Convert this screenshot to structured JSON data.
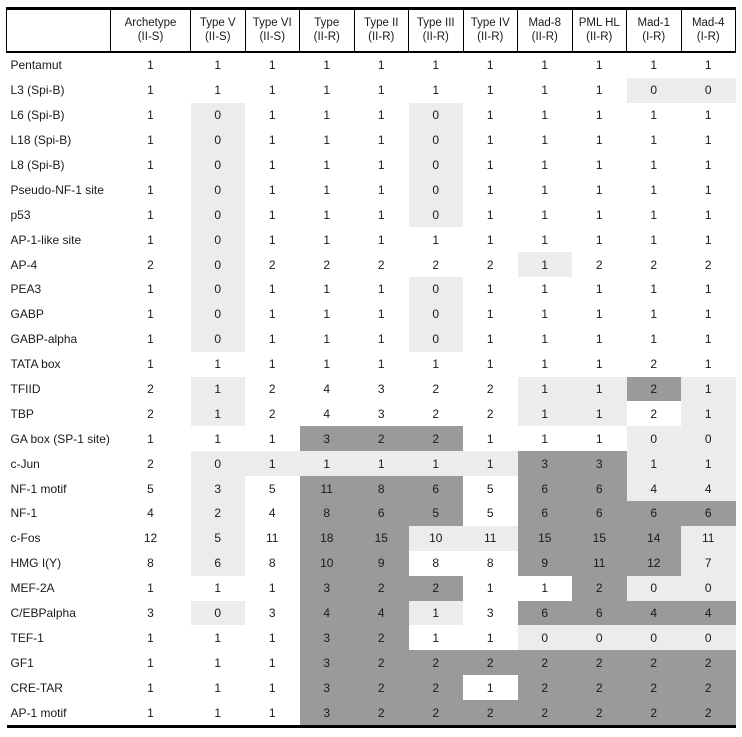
{
  "table": {
    "corner_label": "",
    "colors": {
      "highlight_light": "#ececec",
      "highlight_dark": "#9a9a9a",
      "text": "#1a1a1a",
      "border": "#000000",
      "background": "#ffffff"
    },
    "columns": [
      {
        "label": "Archetype",
        "sub": "(II-S)"
      },
      {
        "label": "Type V",
        "sub": "(II-S)"
      },
      {
        "label": "Type VI",
        "sub": "(II-S)"
      },
      {
        "label": "Type",
        "sub": "(II-R)"
      },
      {
        "label": "Type II",
        "sub": "(II-R)"
      },
      {
        "label": "Type III",
        "sub": "(II-R)"
      },
      {
        "label": "Type IV",
        "sub": "(II-R)"
      },
      {
        "label": "Mad-8",
        "sub": "(II-R)"
      },
      {
        "label": "PML HL",
        "sub": "(II-R)"
      },
      {
        "label": "Mad-1",
        "sub": "(I-R)"
      },
      {
        "label": "Mad-4",
        "sub": "(I-R)"
      }
    ],
    "shade_legend": {
      "w": "white",
      "l": "light-gray",
      "d": "dark-gray"
    },
    "rows": [
      {
        "label": "Pentamut",
        "values": [
          1,
          1,
          1,
          1,
          1,
          1,
          1,
          1,
          1,
          1,
          1
        ],
        "shades": [
          "w",
          "w",
          "w",
          "w",
          "w",
          "w",
          "w",
          "w",
          "w",
          "w",
          "w"
        ]
      },
      {
        "label": "L3 (Spi-B)",
        "values": [
          1,
          1,
          1,
          1,
          1,
          1,
          1,
          1,
          1,
          0,
          0
        ],
        "shades": [
          "w",
          "w",
          "w",
          "w",
          "w",
          "w",
          "w",
          "w",
          "w",
          "l",
          "l"
        ]
      },
      {
        "label": "L6 (Spi-B)",
        "values": [
          1,
          0,
          1,
          1,
          1,
          0,
          1,
          1,
          1,
          1,
          1
        ],
        "shades": [
          "w",
          "l",
          "w",
          "w",
          "w",
          "l",
          "w",
          "w",
          "w",
          "w",
          "w"
        ]
      },
      {
        "label": "L18 (Spi-B)",
        "values": [
          1,
          0,
          1,
          1,
          1,
          0,
          1,
          1,
          1,
          1,
          1
        ],
        "shades": [
          "w",
          "l",
          "w",
          "w",
          "w",
          "l",
          "w",
          "w",
          "w",
          "w",
          "w"
        ]
      },
      {
        "label": "L8 (Spi-B)",
        "values": [
          1,
          0,
          1,
          1,
          1,
          0,
          1,
          1,
          1,
          1,
          1
        ],
        "shades": [
          "w",
          "l",
          "w",
          "w",
          "w",
          "l",
          "w",
          "w",
          "w",
          "w",
          "w"
        ]
      },
      {
        "label": "Pseudo-NF-1 site",
        "values": [
          1,
          0,
          1,
          1,
          1,
          0,
          1,
          1,
          1,
          1,
          1
        ],
        "shades": [
          "w",
          "l",
          "w",
          "w",
          "w",
          "l",
          "w",
          "w",
          "w",
          "w",
          "w"
        ]
      },
      {
        "label": "p53",
        "values": [
          1,
          0,
          1,
          1,
          1,
          0,
          1,
          1,
          1,
          1,
          1
        ],
        "shades": [
          "w",
          "l",
          "w",
          "w",
          "w",
          "l",
          "w",
          "w",
          "w",
          "w",
          "w"
        ]
      },
      {
        "label": "AP-1-like site",
        "values": [
          1,
          0,
          1,
          1,
          1,
          1,
          1,
          1,
          1,
          1,
          1
        ],
        "shades": [
          "w",
          "l",
          "w",
          "w",
          "w",
          "w",
          "w",
          "w",
          "w",
          "w",
          "w"
        ]
      },
      {
        "label": "AP-4",
        "values": [
          2,
          0,
          2,
          2,
          2,
          2,
          2,
          1,
          2,
          2,
          2
        ],
        "shades": [
          "w",
          "l",
          "w",
          "w",
          "w",
          "w",
          "w",
          "l",
          "w",
          "w",
          "w"
        ]
      },
      {
        "label": "PEA3",
        "values": [
          1,
          0,
          1,
          1,
          1,
          0,
          1,
          1,
          1,
          1,
          1
        ],
        "shades": [
          "w",
          "l",
          "w",
          "w",
          "w",
          "l",
          "w",
          "w",
          "w",
          "w",
          "w"
        ]
      },
      {
        "label": "GABP",
        "values": [
          1,
          0,
          1,
          1,
          1,
          0,
          1,
          1,
          1,
          1,
          1
        ],
        "shades": [
          "w",
          "l",
          "w",
          "w",
          "w",
          "l",
          "w",
          "w",
          "w",
          "w",
          "w"
        ]
      },
      {
        "label": "GABP-alpha",
        "values": [
          1,
          0,
          1,
          1,
          1,
          0,
          1,
          1,
          1,
          1,
          1
        ],
        "shades": [
          "w",
          "l",
          "w",
          "w",
          "w",
          "l",
          "w",
          "w",
          "w",
          "w",
          "w"
        ]
      },
      {
        "label": "TATA box",
        "values": [
          1,
          1,
          1,
          1,
          1,
          1,
          1,
          1,
          1,
          2,
          1
        ],
        "shades": [
          "w",
          "w",
          "w",
          "w",
          "w",
          "w",
          "w",
          "w",
          "w",
          "w",
          "w"
        ]
      },
      {
        "label": "TFIID",
        "values": [
          2,
          1,
          2,
          4,
          3,
          2,
          2,
          1,
          1,
          2,
          1
        ],
        "shades": [
          "w",
          "l",
          "w",
          "w",
          "w",
          "w",
          "w",
          "l",
          "l",
          "d",
          "l"
        ]
      },
      {
        "label": "TBP",
        "values": [
          2,
          1,
          2,
          4,
          3,
          2,
          2,
          1,
          1,
          2,
          1
        ],
        "shades": [
          "w",
          "l",
          "w",
          "w",
          "w",
          "w",
          "w",
          "l",
          "l",
          "w",
          "l"
        ]
      },
      {
        "label": "GA box (SP-1 site)",
        "values": [
          1,
          1,
          1,
          3,
          2,
          2,
          1,
          1,
          1,
          0,
          0
        ],
        "shades": [
          "w",
          "w",
          "w",
          "d",
          "d",
          "d",
          "w",
          "w",
          "w",
          "l",
          "l"
        ]
      },
      {
        "label": "c-Jun",
        "values": [
          2,
          0,
          1,
          1,
          1,
          1,
          1,
          3,
          3,
          1,
          1
        ],
        "shades": [
          "w",
          "l",
          "l",
          "l",
          "l",
          "l",
          "l",
          "d",
          "d",
          "l",
          "l"
        ]
      },
      {
        "label": "NF-1 motif",
        "values": [
          5,
          3,
          5,
          11,
          8,
          6,
          5,
          6,
          6,
          4,
          4
        ],
        "shades": [
          "w",
          "l",
          "w",
          "d",
          "d",
          "d",
          "w",
          "d",
          "d",
          "l",
          "l"
        ]
      },
      {
        "label": "NF-1",
        "values": [
          4,
          2,
          4,
          8,
          6,
          5,
          5,
          6,
          6,
          6,
          6
        ],
        "shades": [
          "w",
          "l",
          "w",
          "d",
          "d",
          "d",
          "w",
          "d",
          "d",
          "d",
          "d"
        ]
      },
      {
        "label": "c-Fos",
        "values": [
          12,
          5,
          11,
          18,
          15,
          10,
          11,
          15,
          15,
          14,
          11
        ],
        "shades": [
          "w",
          "l",
          "w",
          "d",
          "d",
          "l",
          "l",
          "d",
          "d",
          "d",
          "l"
        ]
      },
      {
        "label": "HMG I(Y)",
        "values": [
          8,
          6,
          8,
          10,
          9,
          8,
          8,
          9,
          11,
          12,
          7
        ],
        "shades": [
          "w",
          "l",
          "w",
          "d",
          "d",
          "w",
          "w",
          "d",
          "d",
          "d",
          "l"
        ]
      },
      {
        "label": "MEF-2A",
        "values": [
          1,
          1,
          1,
          3,
          2,
          2,
          1,
          1,
          2,
          0,
          0
        ],
        "shades": [
          "w",
          "w",
          "w",
          "d",
          "d",
          "d",
          "w",
          "w",
          "d",
          "l",
          "l"
        ]
      },
      {
        "label": "C/EBPalpha",
        "values": [
          3,
          0,
          3,
          4,
          4,
          1,
          3,
          6,
          6,
          4,
          4
        ],
        "shades": [
          "w",
          "l",
          "w",
          "d",
          "d",
          "l",
          "w",
          "d",
          "d",
          "d",
          "d"
        ]
      },
      {
        "label": "TEF-1",
        "values": [
          1,
          1,
          1,
          3,
          2,
          1,
          1,
          0,
          0,
          0,
          0
        ],
        "shades": [
          "w",
          "w",
          "w",
          "d",
          "d",
          "w",
          "w",
          "l",
          "l",
          "l",
          "l"
        ]
      },
      {
        "label": "GF1",
        "values": [
          1,
          1,
          1,
          3,
          2,
          2,
          2,
          2,
          2,
          2,
          2
        ],
        "shades": [
          "w",
          "w",
          "w",
          "d",
          "d",
          "d",
          "d",
          "d",
          "d",
          "d",
          "d"
        ]
      },
      {
        "label": "CRE-TAR",
        "values": [
          1,
          1,
          1,
          3,
          2,
          2,
          1,
          2,
          2,
          2,
          2
        ],
        "shades": [
          "w",
          "w",
          "w",
          "d",
          "d",
          "d",
          "w",
          "d",
          "d",
          "d",
          "d"
        ]
      },
      {
        "label": "AP-1 motif",
        "values": [
          1,
          1,
          1,
          3,
          2,
          2,
          2,
          2,
          2,
          2,
          2
        ],
        "shades": [
          "w",
          "w",
          "w",
          "d",
          "d",
          "d",
          "d",
          "d",
          "d",
          "d",
          "d"
        ]
      }
    ]
  }
}
